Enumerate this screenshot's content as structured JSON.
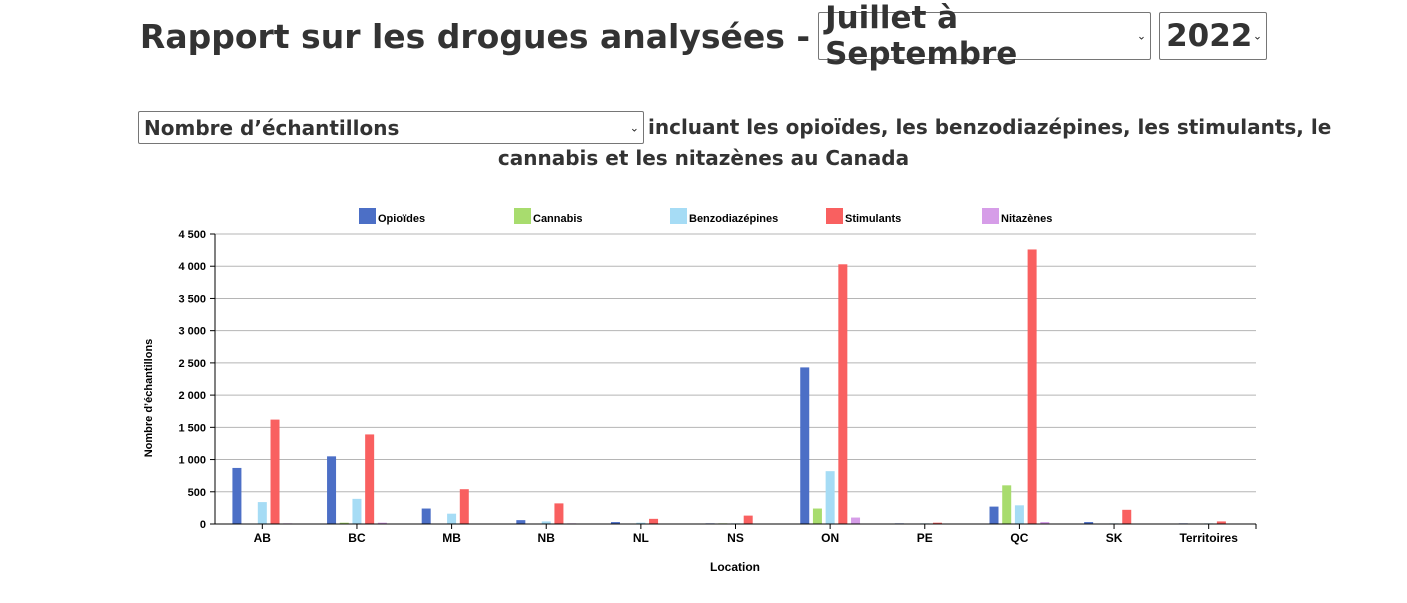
{
  "header": {
    "title_prefix": "Rapport sur les drogues analysées -",
    "period_selected": "Juillet à Septembre",
    "year_selected": "2022"
  },
  "subtitle": {
    "metric_selected": "Nombre d’échantillons",
    "line1": "incluant les opioïdes, les benzodiazépines, les stimulants, le",
    "line2": "cannabis et les nitazènes au Canada"
  },
  "chart_data": {
    "type": "bar",
    "xlabel": "Location",
    "ylabel": "Nombre d’échantillons",
    "ylim": [
      0,
      4500
    ],
    "yticks": [
      0,
      500,
      1000,
      1500,
      2000,
      2500,
      3000,
      3500,
      4000,
      4500
    ],
    "ytick_labels": [
      "0",
      "500",
      "1 000",
      "1 500",
      "2 000",
      "2 500",
      "3 000",
      "3 500",
      "4 000",
      "4 500"
    ],
    "grid": true,
    "legend_position": "top",
    "categories": [
      "AB",
      "BC",
      "MB",
      "NB",
      "NL",
      "NS",
      "ON",
      "PE",
      "QC",
      "SK",
      "Territoires"
    ],
    "series": [
      {
        "name": "Opioïdes",
        "color": "#4c6fc6",
        "values": [
          870,
          1050,
          240,
          60,
          30,
          10,
          2430,
          10,
          270,
          30,
          10
        ]
      },
      {
        "name": "Cannabis",
        "color": "#a8dc6e",
        "values": [
          0,
          20,
          0,
          0,
          0,
          10,
          240,
          0,
          600,
          0,
          0
        ]
      },
      {
        "name": "Benzodiazépines",
        "color": "#a6dcf5",
        "values": [
          340,
          390,
          160,
          40,
          20,
          10,
          820,
          10,
          290,
          10,
          10
        ]
      },
      {
        "name": "Stimulants",
        "color": "#f96060",
        "values": [
          1620,
          1390,
          540,
          320,
          80,
          130,
          4030,
          20,
          4260,
          220,
          40
        ]
      },
      {
        "name": "Nitazènes",
        "color": "#d69de8",
        "values": [
          10,
          20,
          0,
          10,
          0,
          0,
          100,
          0,
          30,
          0,
          0
        ]
      }
    ]
  }
}
